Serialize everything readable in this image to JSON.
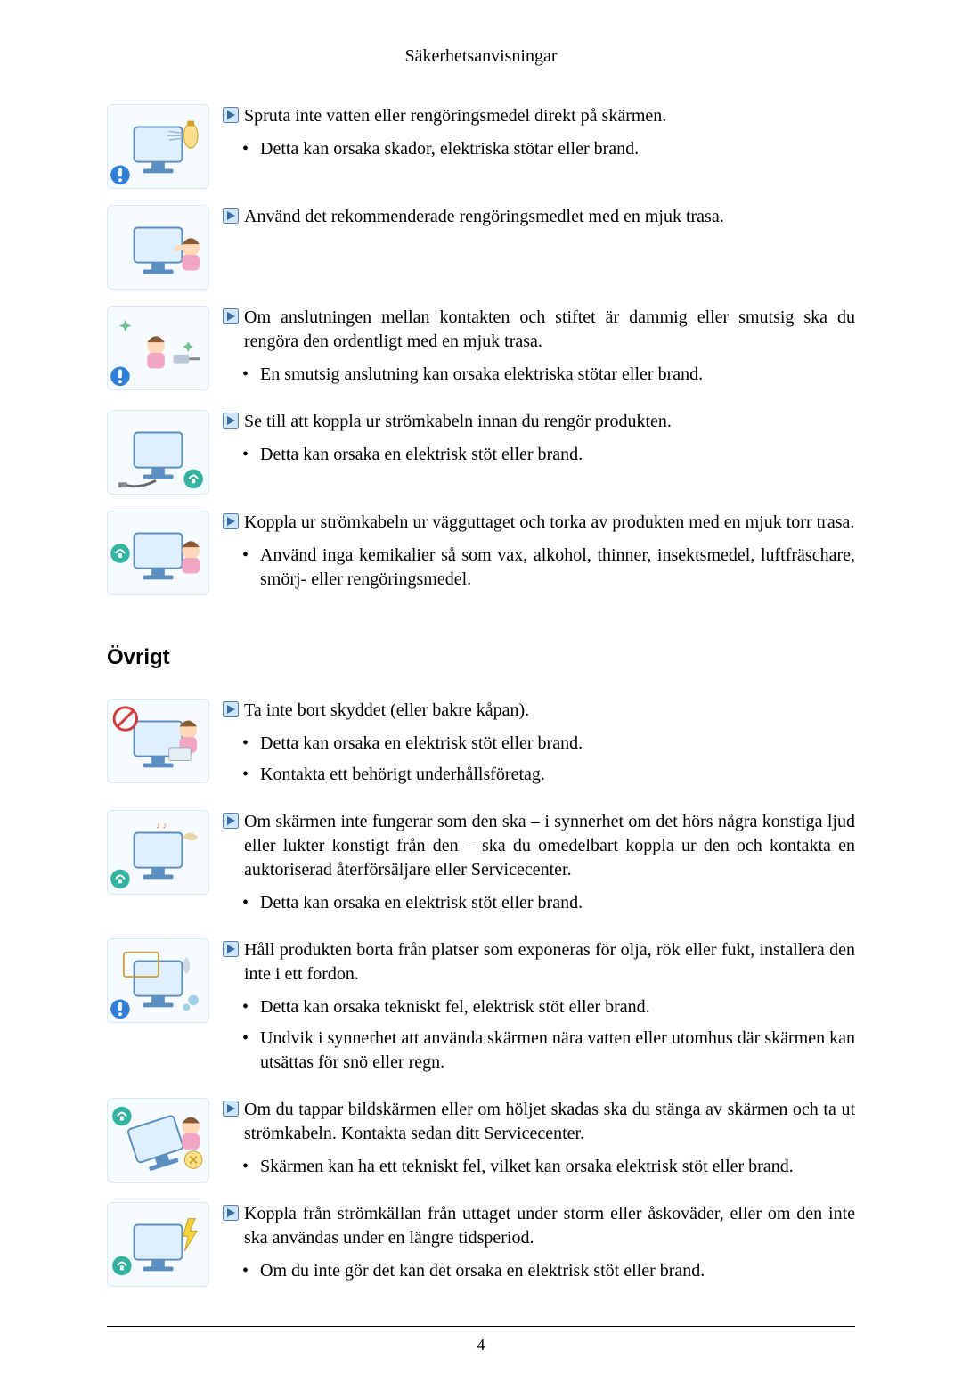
{
  "header": "Säkerhetsanvisningar",
  "page_number": "4",
  "arrow_icon": {
    "bg": "#cfe6fa",
    "border": "#5a7fa6",
    "triangle": "#3a6aa0"
  },
  "illustration_colors": {
    "monitor_fill": "#dfeffd",
    "monitor_stroke": "#5b8fc2",
    "warn_blue_bg": "#2f7ed8",
    "warn_blue_mark": "#ffffff",
    "prohibit_ring": "#d23c3c",
    "unplug_bg": "#34b3a0",
    "skin": "#ffd8b8",
    "hair": "#8a5a33",
    "cloth": "#f3a5c4",
    "sparkle": "#6fc18e"
  },
  "sections": [
    {
      "title": null,
      "items": [
        {
          "icon": "spray",
          "headline": "Spruta inte vatten eller rengöringsmedel direkt på skärmen.",
          "bullets": [
            "Detta kan orsaka skador, elektriska stötar eller brand."
          ]
        },
        {
          "icon": "wipe",
          "headline": "Använd det rekommenderade rengöringsmedlet med en mjuk trasa.",
          "bullets": []
        },
        {
          "icon": "dusty-plug",
          "headline": "Om anslutningen mellan kontakten och stiftet är dammig eller smutsig ska du rengöra den ordentligt med en mjuk trasa.",
          "bullets": [
            "En smutsig anslutning kan orsaka elektriska stötar eller brand."
          ]
        },
        {
          "icon": "unplug-clean",
          "headline": "Se till att koppla ur strömkabeln innan du rengör produkten.",
          "bullets": [
            "Detta kan orsaka en elektrisk stöt eller brand."
          ]
        },
        {
          "icon": "wipe-dry",
          "headline": "Koppla ur strömkabeln ur vägguttaget och torka av produkten med en mjuk torr trasa.",
          "bullets": [
            "Använd inga kemikalier så som vax, alkohol, thinner, insektsmedel, luftfräschare, smörj- eller rengöringsmedel."
          ]
        }
      ]
    },
    {
      "title": "Övrigt",
      "items": [
        {
          "icon": "no-cover",
          "headline": "Ta inte bort skyddet (eller bakre kåpan).",
          "bullets": [
            "Detta kan orsaka en elektrisk stöt eller brand.",
            "Kontakta ett behörigt underhållsföretag."
          ]
        },
        {
          "icon": "malfunction",
          "headline": "Om skärmen inte fungerar som den ska – i synnerhet om det hörs några konstiga ljud eller lukter konstigt från den – ska du omedelbart koppla ur den och kontakta en auktoriserad återförsäljare eller Servicecenter.",
          "bullets": [
            "Detta kan orsaka en elektrisk stöt eller brand."
          ]
        },
        {
          "icon": "oil-smoke",
          "headline": "Håll produkten borta från platser som exponeras för olja, rök eller fukt, installera den inte i ett fordon.",
          "bullets": [
            "Detta kan orsaka tekniskt fel, elektrisk stöt eller brand.",
            "Undvik i synnerhet att använda skärmen nära vatten eller utomhus där skärmen kan utsättas för snö eller regn."
          ]
        },
        {
          "icon": "drop",
          "headline": "Om du tappar bildskärmen eller om höljet skadas ska du stänga av skärmen och ta ut strömkabeln. Kontakta sedan ditt Servicecenter.",
          "bullets": [
            "Skärmen kan ha ett tekniskt fel, vilket kan orsaka elektrisk stöt eller brand."
          ]
        },
        {
          "icon": "storm",
          "headline": "Koppla från strömkällan från uttaget under storm eller åskoväder, eller om den inte ska användas under en längre tidsperiod.",
          "bullets": [
            "Om du inte gör det kan det orsaka en elektrisk stöt eller brand."
          ]
        }
      ]
    }
  ]
}
